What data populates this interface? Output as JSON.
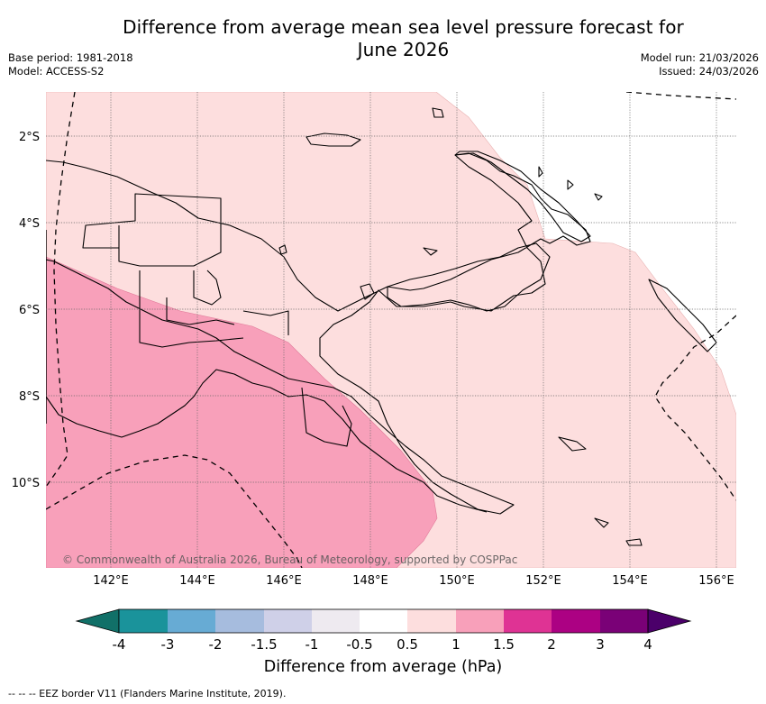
{
  "title_line1": "Difference from average mean sea level pressure forecast for",
  "title_line2": "June 2026",
  "base_period": "Base period: 1981-2018",
  "model": "Model: ACCESS-S2",
  "model_run": "Model run: 21/03/2026",
  "issued": "Issued: 24/03/2026",
  "copyright": "© Commonwealth of Australia 2026, Bureau of Meteorology, supported by COSPPac",
  "footnote": "-- -- -- EEZ border V11 (Flanders Marine Institute, 2019).",
  "colors": {
    "light_pink": "#fddede",
    "medium_pink": "#f8a0ba",
    "land_outline": "#000000",
    "graticule": "#666666"
  },
  "map_data": {
    "region": "Papua New Guinea",
    "lat_labels": [
      "2°S",
      "4°S",
      "6°S",
      "8°S",
      "10°S"
    ],
    "lon_labels": [
      "142°E",
      "144°E",
      "146°E",
      "148°E",
      "150°E",
      "152°E",
      "154°E",
      "156°E"
    ],
    "anomaly_zones": [
      {
        "range": "0.5 to 1",
        "description": "most of region"
      },
      {
        "range": "1 to 1.5",
        "description": "south-west Gulf of Papua and Torres Strait"
      }
    ]
  },
  "colorbar": {
    "title": "Difference from average (hPa)",
    "labels": [
      "-4",
      "-3",
      "-2",
      "-1.5",
      "-1",
      "-0.5",
      "0.5",
      "1",
      "1.5",
      "2",
      "3",
      "4"
    ],
    "colors": [
      "#117068",
      "#1a939b",
      "#67abd4",
      "#a6bcde",
      "#cfd0e8",
      "#eeeaf0",
      "#ffffff",
      "#fddede",
      "#f8a0ba",
      "#df3394",
      "#ac0183",
      "#7a0177",
      "#4b006a"
    ]
  }
}
